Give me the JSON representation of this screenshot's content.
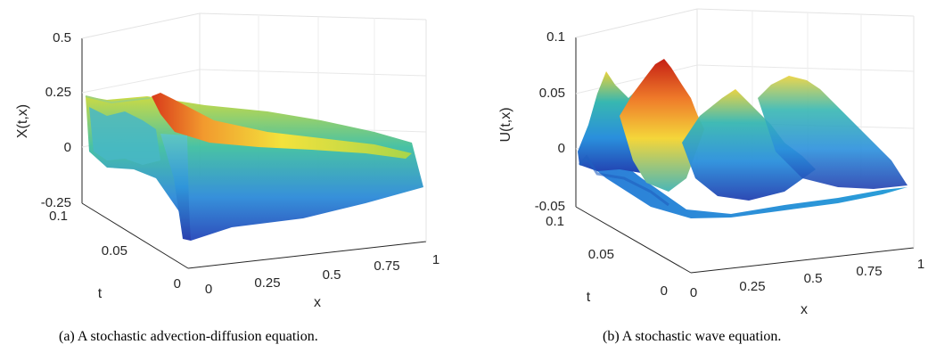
{
  "chart_data": [
    {
      "type": "surface3d",
      "panel": "a",
      "zlabel": "X(t,x)",
      "xlabel": "x",
      "ylabel": "t",
      "z_ticks": [
        "0.5",
        "0.25",
        "0",
        "-0.25"
      ],
      "x_ticks": [
        "0",
        "0.25",
        "0.5",
        "0.75",
        "1"
      ],
      "t_ticks": [
        "0",
        "0.05",
        "0.1"
      ],
      "zlim": [
        -0.25,
        0.5
      ],
      "xlim": [
        0,
        1
      ],
      "tlim": [
        0,
        0.1
      ],
      "peak": {
        "x": 0.0,
        "t": 0.1,
        "z": 0.21
      },
      "colormap": "parula",
      "caption": "(a)  A stochastic advection-diffusion equation."
    },
    {
      "type": "surface3d",
      "panel": "b",
      "zlabel": "U(t,x)",
      "xlabel": "x",
      "ylabel": "t",
      "z_ticks": [
        "0.1",
        "0.05",
        "0",
        "-0.05"
      ],
      "x_ticks": [
        "0",
        "0.25",
        "0.5",
        "0.75",
        "1"
      ],
      "t_ticks": [
        "0",
        "0.05",
        "0.1"
      ],
      "zlim": [
        -0.05,
        0.1
      ],
      "xlim": [
        0,
        1
      ],
      "tlim": [
        0,
        0.1
      ],
      "peak": {
        "x": 0.25,
        "t": 0.07,
        "z": 0.078
      },
      "colormap": "parula",
      "caption": "(b)  A stochastic wave equation."
    }
  ]
}
